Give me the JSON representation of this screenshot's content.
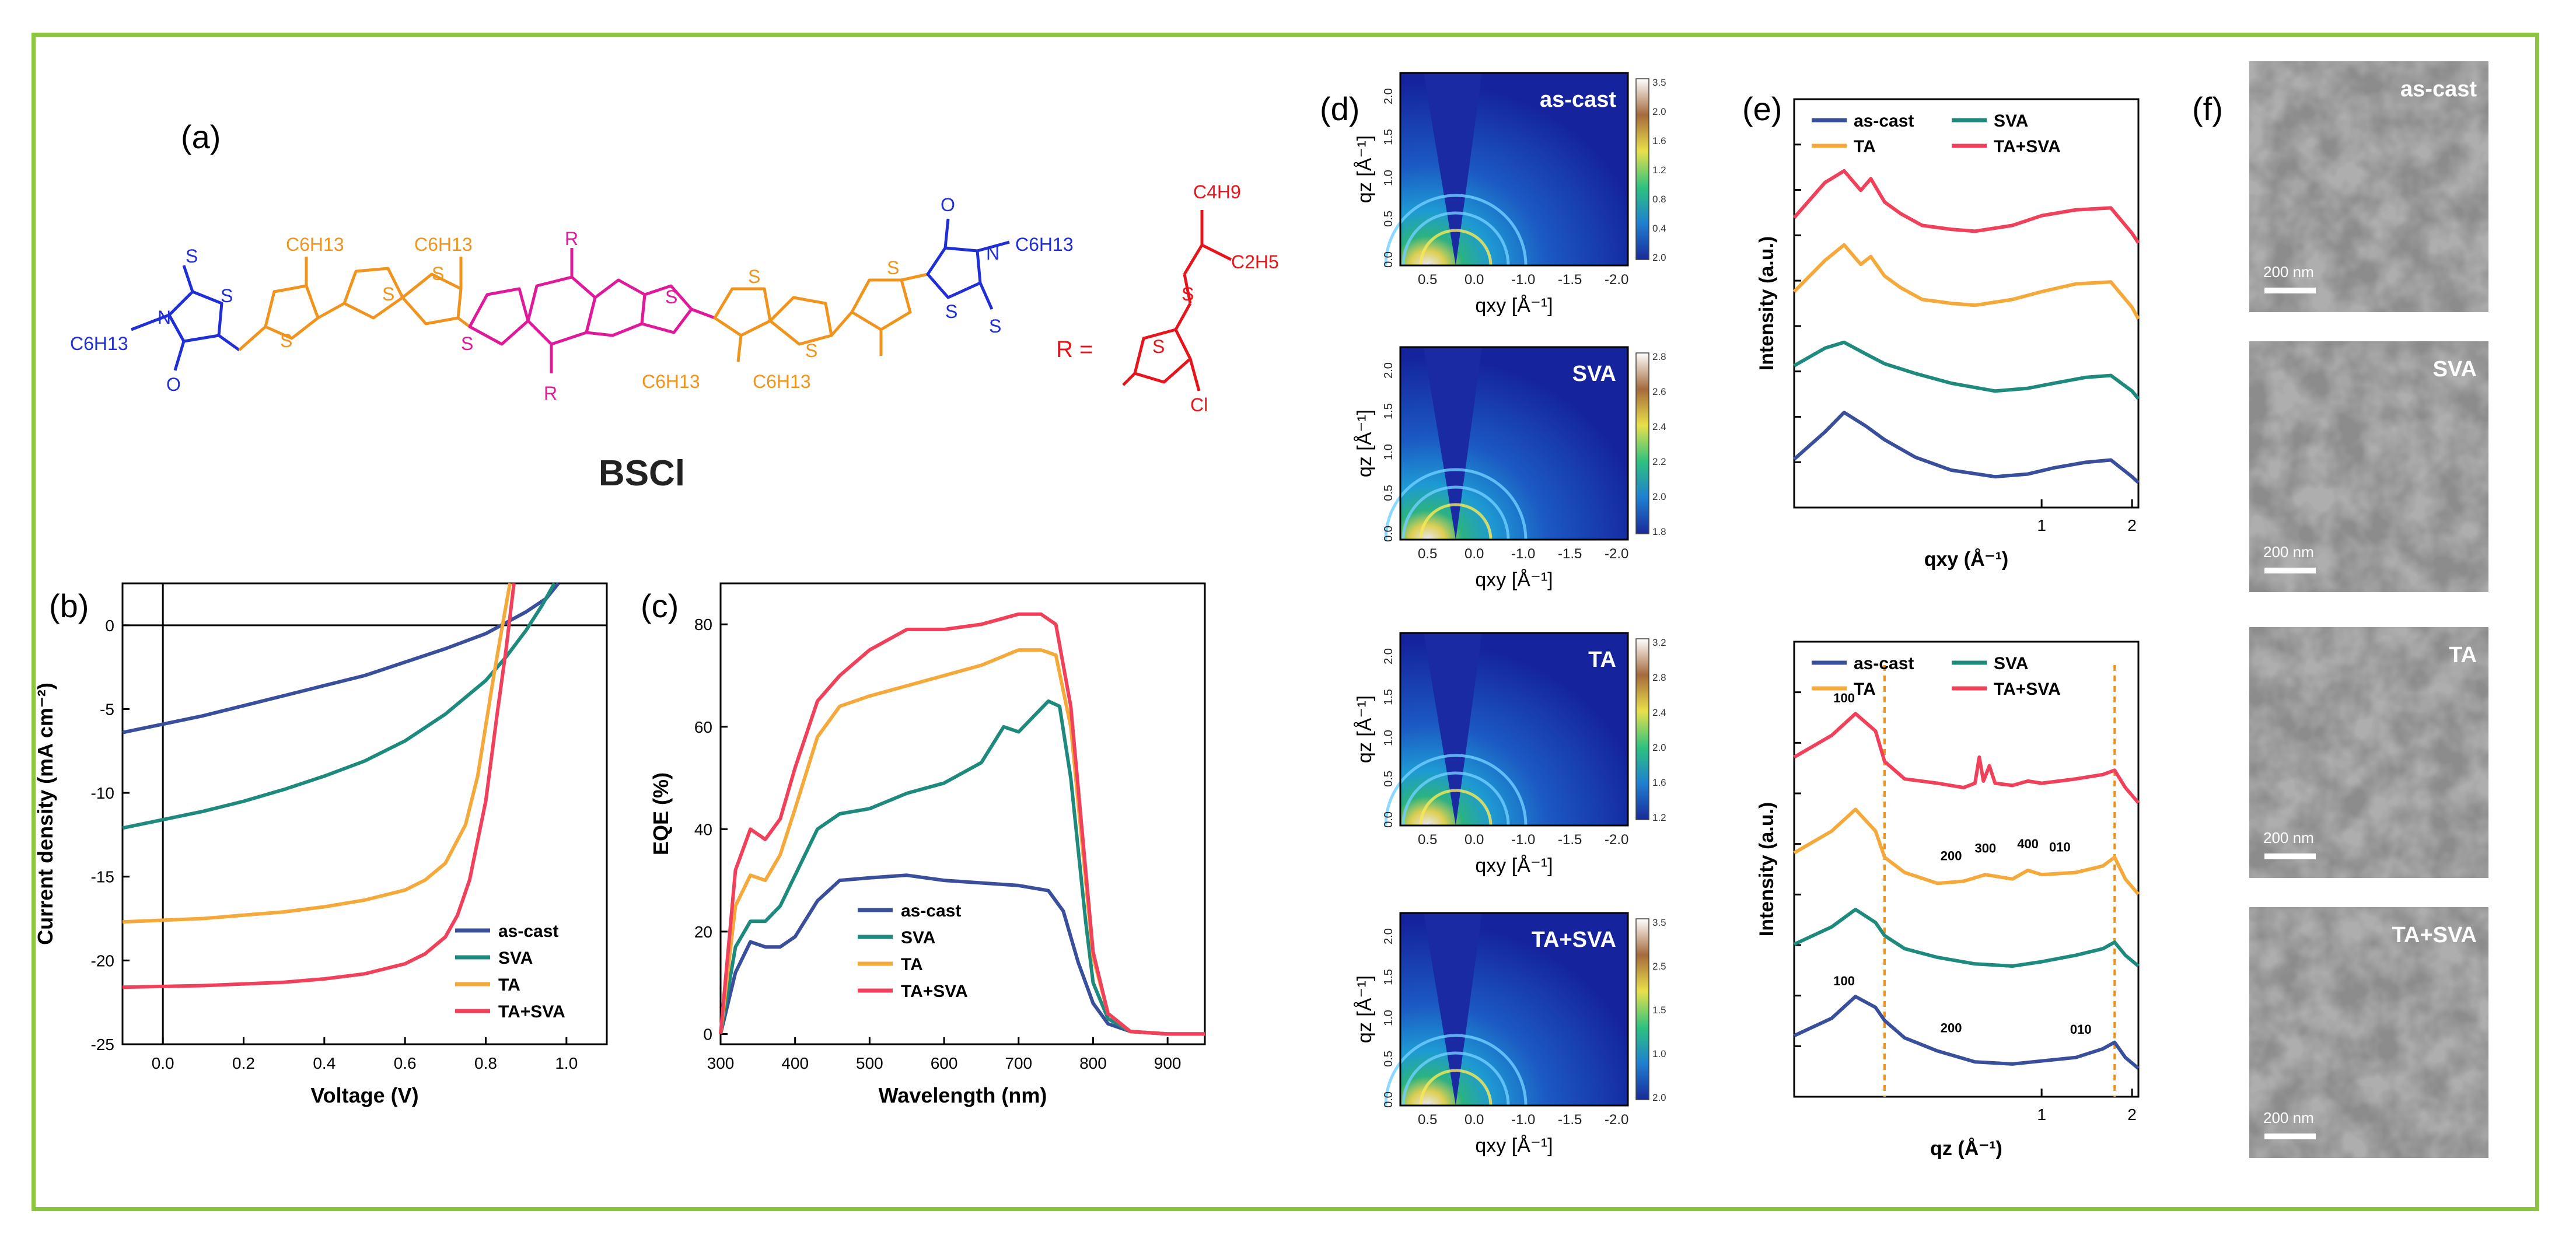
{
  "colors": {
    "frame": "#8cc63f",
    "as_cast": "#3a4f9c",
    "SVA": "#1e8a7e",
    "TA": "#f5a93b",
    "TA_SVA": "#f0405a",
    "blue_group": "#1f2ed6",
    "orange_group": "#f0941d",
    "magenta_group": "#e0189a",
    "red_group": "#e8141c",
    "guide": "#f09018"
  },
  "panel_labels": {
    "a": "(a)",
    "b": "(b)",
    "c": "(c)",
    "d": "(d)",
    "e": "(e)",
    "f": "(f)"
  },
  "structure": {
    "name": "BSCl",
    "r_eq": "R =",
    "R": "R",
    "S": "S",
    "O": "O",
    "N": "N",
    "Cl": "Cl",
    "C6H13": "C6H13",
    "C4H9": "C4H9",
    "C2H5": "C2H5"
  },
  "chart_data": [
    {
      "id": "b",
      "type": "line",
      "title": "",
      "xlabel": "Voltage (V)",
      "ylabel": "Current density (mA cm⁻²)",
      "xlim": [
        -0.1,
        1.1
      ],
      "ylim": [
        -25,
        2.5
      ],
      "xticks": [
        "0.0",
        "0.2",
        "0.4",
        "0.6",
        "0.8",
        "1.0"
      ],
      "xtick_values": [
        0,
        0.2,
        0.4,
        0.6,
        0.8,
        1.0
      ],
      "yticks": [
        "0",
        "-5",
        "-10",
        "-15",
        "-20",
        "-25"
      ],
      "ytick_values": [
        0,
        -5,
        -10,
        -15,
        -20,
        -25
      ],
      "legend": [
        "as-cast",
        "SVA",
        "TA",
        "TA+SVA"
      ],
      "series": [
        {
          "name": "as-cast",
          "color": "#3a4f9c",
          "x": [
            -0.1,
            0,
            0.1,
            0.2,
            0.3,
            0.4,
            0.5,
            0.6,
            0.7,
            0.8,
            0.9,
            0.95,
            0.98
          ],
          "y": [
            -6.4,
            -5.9,
            -5.4,
            -4.8,
            -4.2,
            -3.6,
            -3.0,
            -2.2,
            -1.4,
            -0.5,
            0.8,
            1.6,
            2.5
          ]
        },
        {
          "name": "SVA",
          "color": "#1e8a7e",
          "x": [
            -0.1,
            0,
            0.1,
            0.2,
            0.3,
            0.4,
            0.5,
            0.6,
            0.7,
            0.8,
            0.85,
            0.9,
            0.94,
            0.97
          ],
          "y": [
            -12.1,
            -11.6,
            -11.1,
            -10.5,
            -9.8,
            -9.0,
            -8.1,
            -6.9,
            -5.3,
            -3.3,
            -1.9,
            -0.3,
            1.2,
            2.5
          ]
        },
        {
          "name": "TA",
          "color": "#f5a93b",
          "x": [
            -0.1,
            0,
            0.1,
            0.2,
            0.3,
            0.4,
            0.5,
            0.6,
            0.65,
            0.7,
            0.75,
            0.78,
            0.8,
            0.82,
            0.84,
            0.86
          ],
          "y": [
            -17.7,
            -17.6,
            -17.5,
            -17.3,
            -17.1,
            -16.8,
            -16.4,
            -15.8,
            -15.2,
            -14.2,
            -11.9,
            -9.0,
            -6.0,
            -3.0,
            -0.2,
            2.5
          ]
        },
        {
          "name": "TA+SVA",
          "color": "#f0405a",
          "x": [
            -0.1,
            0,
            0.1,
            0.2,
            0.3,
            0.4,
            0.5,
            0.6,
            0.65,
            0.7,
            0.73,
            0.76,
            0.8,
            0.83,
            0.85,
            0.87
          ],
          "y": [
            -21.6,
            -21.55,
            -21.5,
            -21.4,
            -21.3,
            -21.1,
            -20.8,
            -20.2,
            -19.6,
            -18.6,
            -17.3,
            -15.2,
            -10.5,
            -5.0,
            -1.5,
            2.5
          ]
        }
      ]
    },
    {
      "id": "c",
      "type": "line",
      "title": "",
      "xlabel": "Wavelength (nm)",
      "ylabel": "EQE (%)",
      "xlim": [
        300,
        950
      ],
      "ylim": [
        -2,
        88
      ],
      "xticks": [
        "300",
        "400",
        "500",
        "600",
        "700",
        "800",
        "900"
      ],
      "xtick_values": [
        300,
        400,
        500,
        600,
        700,
        800,
        900
      ],
      "yticks": [
        "0",
        "20",
        "40",
        "60",
        "80"
      ],
      "ytick_values": [
        0,
        20,
        40,
        60,
        80
      ],
      "legend": [
        "as-cast",
        "SVA",
        "TA",
        "TA+SVA"
      ],
      "series": [
        {
          "name": "as-cast",
          "color": "#3a4f9c",
          "x": [
            300,
            320,
            340,
            360,
            380,
            400,
            430,
            460,
            500,
            550,
            600,
            650,
            700,
            740,
            760,
            780,
            800,
            820,
            850,
            900,
            950
          ],
          "y": [
            0,
            12,
            18,
            17,
            17,
            19,
            26,
            30,
            30.5,
            31,
            30,
            29.5,
            29,
            28,
            24,
            14,
            6,
            2,
            0.5,
            0,
            0
          ]
        },
        {
          "name": "SVA",
          "color": "#1e8a7e",
          "x": [
            300,
            320,
            340,
            360,
            380,
            400,
            430,
            460,
            500,
            550,
            600,
            650,
            680,
            700,
            720,
            740,
            755,
            770,
            790,
            800,
            820,
            850,
            900,
            950
          ],
          "y": [
            0,
            17,
            22,
            22,
            25,
            31,
            40,
            43,
            44,
            47,
            49,
            53,
            60,
            59,
            62,
            65,
            64,
            50,
            22,
            10,
            3,
            0.5,
            0,
            0
          ]
        },
        {
          "name": "TA",
          "color": "#f5a93b",
          "x": [
            300,
            320,
            340,
            360,
            380,
            400,
            430,
            460,
            500,
            550,
            600,
            650,
            700,
            730,
            750,
            770,
            790,
            800,
            820,
            850,
            900,
            950
          ],
          "y": [
            0,
            25,
            31,
            30,
            35,
            44,
            58,
            64,
            66,
            68,
            70,
            72,
            75,
            75,
            74,
            60,
            30,
            15,
            4,
            0.5,
            0,
            0
          ]
        },
        {
          "name": "TA+SVA",
          "color": "#f0405a",
          "x": [
            300,
            320,
            340,
            360,
            380,
            400,
            430,
            460,
            500,
            550,
            600,
            650,
            700,
            730,
            750,
            770,
            790,
            800,
            820,
            850,
            900,
            950
          ],
          "y": [
            0,
            32,
            40,
            38,
            42,
            52,
            65,
            70,
            75,
            79,
            79,
            80,
            82,
            82,
            80,
            64,
            32,
            16,
            4,
            0.5,
            0,
            0
          ]
        }
      ]
    },
    {
      "id": "d",
      "type": "heatmap",
      "panels": [
        "as-cast",
        "SVA",
        "TA",
        "TA+SVA"
      ],
      "xlabel": "qxy [Å⁻¹]",
      "ylabel": "qz [Å⁻¹]",
      "xticks": [
        "0.5",
        "0.0",
        "-1.0",
        "-1.5",
        "-2.0"
      ],
      "yticks": [
        "0.0",
        "0.5",
        "1.0",
        "1.5",
        "2.0"
      ],
      "colorbars": [
        {
          "panel": "as-cast",
          "ticks": [
            "3.5",
            "2.0",
            "1.6",
            "1.2",
            "0.8",
            "0.4",
            "2.0"
          ]
        },
        {
          "panel": "SVA",
          "ticks": [
            "2.8",
            "2.6",
            "2.4",
            "2.2",
            "2.0",
            "1.8"
          ]
        },
        {
          "panel": "TA",
          "ticks": [
            "3.2",
            "2.8",
            "2.4",
            "2.0",
            "1.6",
            "1.2"
          ]
        },
        {
          "panel": "TA+SVA",
          "ticks": [
            "3.5",
            "2.5",
            "1.5",
            "1.0",
            "2.0"
          ]
        }
      ]
    },
    {
      "id": "e-top",
      "type": "line",
      "xlabel": "qxy (Å⁻¹)",
      "ylabel": "Intensity (a.u.)",
      "xscale": "log",
      "xlim": [
        0.15,
        2.1
      ],
      "xticks": [
        "1",
        "2"
      ],
      "xtick_values": [
        1,
        2
      ],
      "legend": [
        "as-cast",
        "SVA",
        "TA",
        "TA+SVA"
      ],
      "series": [
        {
          "name": "as-cast",
          "color": "#3a4f9c",
          "x": [
            0.15,
            0.19,
            0.22,
            0.26,
            0.3,
            0.38,
            0.5,
            0.7,
            0.9,
            1.1,
            1.4,
            1.7,
            2.0,
            2.1
          ],
          "y": [
            1.0,
            1.7,
            2.2,
            1.85,
            1.5,
            1.05,
            0.72,
            0.55,
            0.62,
            0.78,
            0.92,
            0.98,
            0.55,
            0.4
          ]
        },
        {
          "name": "SVA",
          "color": "#1e8a7e",
          "x": [
            0.15,
            0.19,
            0.22,
            0.26,
            0.3,
            0.38,
            0.5,
            0.7,
            0.9,
            1.1,
            1.4,
            1.7,
            2.0,
            2.1
          ],
          "y": [
            3.4,
            3.85,
            4.0,
            3.7,
            3.45,
            3.2,
            2.95,
            2.75,
            2.82,
            2.95,
            3.1,
            3.15,
            2.75,
            2.55
          ]
        },
        {
          "name": "TA",
          "color": "#f5a93b",
          "x": [
            0.15,
            0.19,
            0.22,
            0.25,
            0.27,
            0.3,
            0.34,
            0.4,
            0.5,
            0.6,
            0.8,
            1.0,
            1.3,
            1.7,
            2.0,
            2.1
          ],
          "y": [
            5.3,
            6.1,
            6.5,
            6.0,
            6.2,
            5.7,
            5.4,
            5.1,
            5.0,
            4.95,
            5.1,
            5.3,
            5.5,
            5.55,
            4.9,
            4.6
          ]
        },
        {
          "name": "TA+SVA",
          "color": "#f0405a",
          "x": [
            0.15,
            0.19,
            0.22,
            0.25,
            0.27,
            0.3,
            0.34,
            0.4,
            0.5,
            0.6,
            0.8,
            1.0,
            1.3,
            1.7,
            2.0,
            2.1
          ],
          "y": [
            7.2,
            8.1,
            8.4,
            7.9,
            8.2,
            7.6,
            7.3,
            7.0,
            6.9,
            6.85,
            7.0,
            7.25,
            7.4,
            7.45,
            6.8,
            6.55
          ]
        }
      ]
    },
    {
      "id": "e-bottom",
      "type": "line",
      "xlabel": "qz (Å⁻¹)",
      "ylabel": "Intensity (a.u.)",
      "xscale": "log",
      "xlim": [
        0.15,
        2.1
      ],
      "xticks": [
        "1",
        "2"
      ],
      "xtick_values": [
        1,
        2
      ],
      "legend": [
        "as-cast",
        "SVA",
        "TA",
        "TA+SVA"
      ],
      "guides_x": [
        0.3,
        1.75
      ],
      "annotations": [
        {
          "text": "100",
          "x": 0.22,
          "row": "TA+SVA"
        },
        {
          "text": "200",
          "x": 0.5,
          "row": "TA"
        },
        {
          "text": "300",
          "x": 0.65,
          "row": "TA"
        },
        {
          "text": "400",
          "x": 0.9,
          "row": "TA"
        },
        {
          "text": "010",
          "x": 1.15,
          "row": "TA"
        },
        {
          "text": "100",
          "x": 0.22,
          "row": "as-cast"
        },
        {
          "text": "200",
          "x": 0.5,
          "row": "as-cast"
        },
        {
          "text": "010",
          "x": 1.35,
          "row": "as-cast"
        }
      ],
      "series": [
        {
          "name": "as-cast",
          "color": "#3a4f9c",
          "x": [
            0.15,
            0.2,
            0.24,
            0.28,
            0.3,
            0.35,
            0.45,
            0.6,
            0.8,
            1.0,
            1.3,
            1.6,
            1.75,
            1.9,
            2.1
          ],
          "y": [
            1.2,
            1.6,
            2.1,
            1.85,
            1.55,
            1.15,
            0.85,
            0.6,
            0.55,
            0.62,
            0.7,
            0.9,
            1.05,
            0.7,
            0.45
          ]
        },
        {
          "name": "SVA",
          "color": "#1e8a7e",
          "x": [
            0.15,
            0.2,
            0.24,
            0.28,
            0.3,
            0.35,
            0.45,
            0.6,
            0.8,
            1.0,
            1.3,
            1.6,
            1.75,
            1.9,
            2.1
          ],
          "y": [
            3.3,
            3.7,
            4.1,
            3.8,
            3.5,
            3.2,
            3.0,
            2.85,
            2.8,
            2.9,
            3.05,
            3.2,
            3.35,
            3.05,
            2.8
          ]
        },
        {
          "name": "TA",
          "color": "#f5a93b",
          "x": [
            0.15,
            0.2,
            0.24,
            0.28,
            0.3,
            0.35,
            0.45,
            0.55,
            0.65,
            0.8,
            0.9,
            1.0,
            1.3,
            1.6,
            1.75,
            1.9,
            2.1
          ],
          "y": [
            5.4,
            5.9,
            6.4,
            5.9,
            5.3,
            4.95,
            4.7,
            4.75,
            4.9,
            4.8,
            5.0,
            4.9,
            4.95,
            5.1,
            5.3,
            4.8,
            4.45
          ]
        },
        {
          "name": "TA+SVA",
          "color": "#f0405a",
          "x": [
            0.15,
            0.2,
            0.24,
            0.28,
            0.3,
            0.35,
            0.45,
            0.55,
            0.6,
            0.62,
            0.64,
            0.67,
            0.7,
            0.8,
            0.9,
            1.0,
            1.3,
            1.6,
            1.75,
            1.9,
            2.1
          ],
          "y": [
            7.6,
            8.1,
            8.6,
            8.2,
            7.5,
            7.1,
            7.0,
            6.9,
            7.0,
            7.6,
            7.05,
            7.4,
            7.0,
            6.95,
            7.05,
            7.0,
            7.1,
            7.2,
            7.3,
            6.9,
            6.55
          ]
        }
      ]
    }
  ],
  "tem": {
    "panels": [
      "as-cast",
      "SVA",
      "TA",
      "TA+SVA"
    ],
    "scale_bar": "200 nm"
  }
}
